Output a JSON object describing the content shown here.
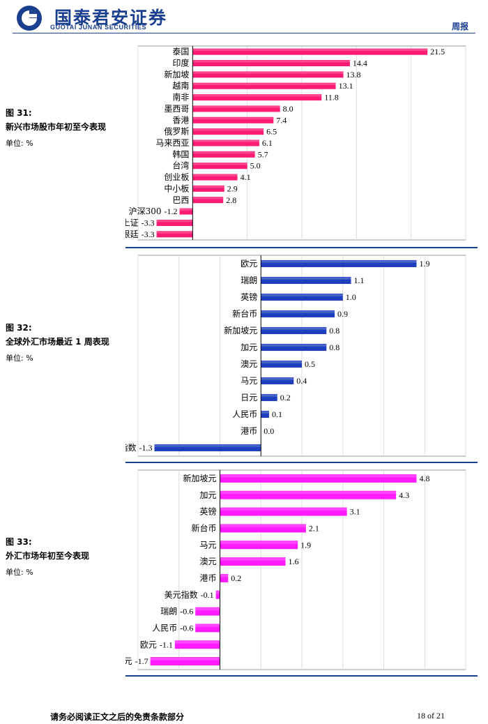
{
  "header": {
    "company_cn": "国泰君安证券",
    "company_en": "GUOTAI JUNAN SECURITIES",
    "report_type": "周报",
    "brand_color": "#1b3f8f"
  },
  "figures": [
    {
      "label": "图 31:",
      "title": "新兴市场股市年初至今表现",
      "unit": "单位: %"
    },
    {
      "label": "图 32:",
      "title": "全球外汇市场最近 1 周表现",
      "unit": "单位: %"
    },
    {
      "label": "图 33:",
      "title": "外汇市场年初至今表现",
      "unit": "单位: %"
    }
  ],
  "chart_data": [
    {
      "type": "bar",
      "orientation": "horizontal",
      "categories": [
        "泰国",
        "印度",
        "新加坡",
        "越南",
        "南非",
        "墨西哥",
        "香港",
        "俄罗斯",
        "马来西亚",
        "韩国",
        "台湾",
        "创业板",
        "中小板",
        "巴西",
        "沪深300",
        "中国上证",
        "阿根廷"
      ],
      "values": [
        21.5,
        14.4,
        13.8,
        13.1,
        11.8,
        8.0,
        7.4,
        6.5,
        6.1,
        5.7,
        5.0,
        4.1,
        2.9,
        2.8,
        -1.2,
        -3.3,
        -3.3
      ],
      "value_labels": [
        "21.5",
        "14.4",
        "13.8",
        "13.1",
        "11.8",
        "8.0",
        "7.4",
        "6.5",
        "6.1",
        "5.7",
        "5.0",
        "4.1",
        "2.9",
        "2.8",
        "-1.2",
        "-3.3",
        "-3.3"
      ],
      "xlim": [
        -5,
        25
      ],
      "grid": true,
      "bar_color": "#ff1a73"
    },
    {
      "type": "bar",
      "orientation": "horizontal",
      "categories": [
        "欧元",
        "瑞朗",
        "英镑",
        "新台币",
        "新加坡元",
        "加元",
        "澳元",
        "马元",
        "日元",
        "人民币",
        "港币",
        "美元指数"
      ],
      "values": [
        1.9,
        1.1,
        1.0,
        0.9,
        0.8,
        0.8,
        0.5,
        0.4,
        0.2,
        0.1,
        0.0,
        -1.3
      ],
      "value_labels": [
        "1.9",
        "1.1",
        "1.0",
        "0.9",
        "0.8",
        "0.8",
        "0.5",
        "0.4",
        "0.2",
        "0.1",
        "0.0",
        "-1.3"
      ],
      "xlim": [
        -1.5,
        2.5
      ],
      "grid": true,
      "bar_color": "#1f3fbf"
    },
    {
      "type": "bar",
      "orientation": "horizontal",
      "categories": [
        "新加坡元",
        "加元",
        "英镑",
        "新台币",
        "马元",
        "澳元",
        "港币",
        "美元指数",
        "瑞朗",
        "人民币",
        "欧元",
        "日元"
      ],
      "values": [
        4.8,
        4.3,
        3.1,
        2.1,
        1.9,
        1.6,
        0.2,
        -0.1,
        -0.6,
        -0.6,
        -1.1,
        -1.7
      ],
      "value_labels": [
        "4.8",
        "4.3",
        "3.1",
        "2.1",
        "1.9",
        "1.6",
        "0.2",
        "-0.1",
        "-0.6",
        "-0.6",
        "-1.1",
        "-1.7"
      ],
      "xlim": [
        -2,
        6
      ],
      "grid": true,
      "bar_color": "#ff1aff"
    }
  ],
  "footer": {
    "disclaimer": "请务必阅读正文之后的免责条款部分",
    "page": "18 of 21"
  }
}
